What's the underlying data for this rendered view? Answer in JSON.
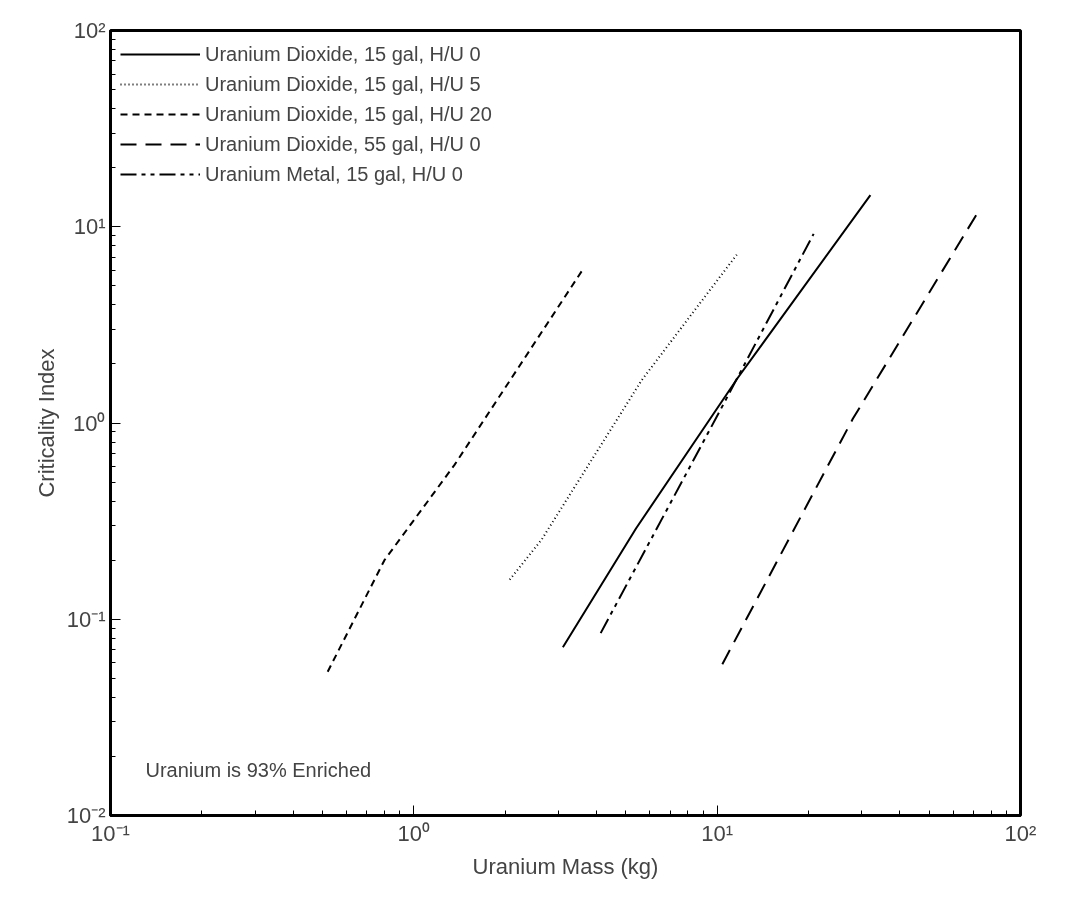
{
  "chart_data": {
    "type": "line",
    "xlabel": "Uranium Mass (kg)",
    "ylabel": "Criticality Index",
    "log": "xy",
    "grid": false,
    "legend": "top left",
    "xlim": [
      0.1,
      100
    ],
    "ylim": [
      0.01,
      100
    ],
    "xticks": [
      {
        "value": 0.1,
        "label": "10⁻¹"
      },
      {
        "value": 1,
        "label": "10⁰"
      },
      {
        "value": 10,
        "label": "10¹"
      },
      {
        "value": 100,
        "label": "10²"
      }
    ],
    "yticks": [
      {
        "value": 0.01,
        "label": "10⁻²"
      },
      {
        "value": 0.1,
        "label": "10⁻¹"
      },
      {
        "value": 1,
        "label": "10⁰"
      },
      {
        "value": 10,
        "label": "10¹"
      },
      {
        "value": 100,
        "label": "10²"
      }
    ],
    "annotations": [
      "Uranium is 93% Enriched"
    ],
    "series": [
      {
        "name": "Uranium Dioxide, 15 gal, H/U 0",
        "color": "#000000",
        "line_style": "solid",
        "x": [
          3.1,
          5.4,
          11.7,
          32
        ],
        "values": [
          0.072,
          0.29,
          1.7,
          14.5
        ]
      },
      {
        "name": "Uranium Dioxide, 15 gal, H/U 5",
        "color": "#000000",
        "line_style": "dotted",
        "x": [
          2.07,
          2.64,
          5.65,
          11.6
        ],
        "values": [
          0.159,
          0.255,
          1.66,
          7.2
        ]
      },
      {
        "name": "Uranium Dioxide, 15 gal, H/U 20",
        "color": "#000000",
        "line_style": "dashed",
        "x": [
          0.52,
          0.8,
          1.36,
          3.63
        ],
        "values": [
          0.054,
          0.2,
          0.61,
          6.15
        ]
      },
      {
        "name": "Uranium Dioxide, 55 gal, H/U 0",
        "color": "#000000",
        "line_style": "longdash",
        "x": [
          10.4,
          28,
          72
        ],
        "values": [
          0.059,
          1.05,
          11.7
        ]
      },
      {
        "name": "Uranium Metal, 15 gal, H/U 0",
        "color": "#000000",
        "line_style": "dashdot",
        "x": [
          4.13,
          10.2,
          20.8
        ],
        "values": [
          0.085,
          1.15,
          9.2
        ]
      }
    ]
  }
}
